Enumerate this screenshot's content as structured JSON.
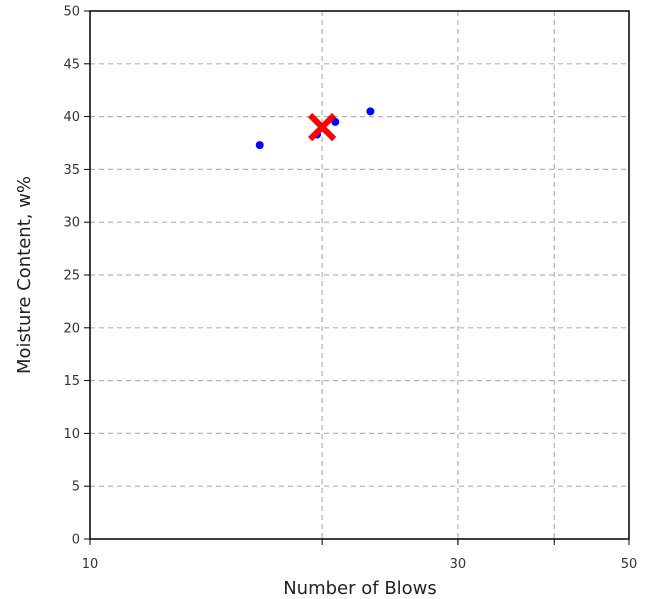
{
  "chart_data": {
    "type": "scatter",
    "xlabel": "Number of Blows",
    "ylabel": "Moisture Content, w%",
    "x_scale": "log",
    "xlim": [
      10,
      50
    ],
    "ylim": [
      0,
      50
    ],
    "x_ticks": [
      10,
      30,
      50
    ],
    "x_grid": [
      20,
      30,
      40
    ],
    "y_ticks": [
      0,
      5,
      10,
      15,
      20,
      25,
      30,
      35,
      40,
      45,
      50
    ],
    "grid": true,
    "series": [
      {
        "marker": "circle",
        "color": "#0000ff",
        "points": [
          {
            "x": 16.6,
            "y": 37.3
          },
          {
            "x": 19.7,
            "y": 38.3
          },
          {
            "x": 20.8,
            "y": 39.5
          },
          {
            "x": 23.1,
            "y": 40.5
          }
        ]
      },
      {
        "marker": "x",
        "color": "#ff0000",
        "points": [
          {
            "x": 20.0,
            "y": 39.0
          }
        ]
      }
    ]
  }
}
